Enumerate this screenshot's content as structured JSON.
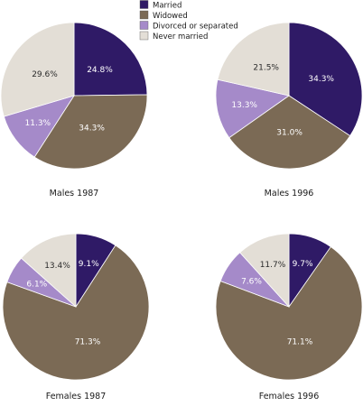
{
  "legend": {
    "items": [
      {
        "label": "Married",
        "color": "#2f1a66"
      },
      {
        "label": "Widowed",
        "color": "#7b6a55"
      },
      {
        "label": "Divorced or separated",
        "color": "#a58ac9"
      },
      {
        "label": "Never married",
        "color": "#e3ded6"
      }
    ]
  },
  "chart_data": [
    {
      "type": "pie",
      "title": "Males 1987",
      "categories": [
        "Married",
        "Widowed",
        "Divorced or separated",
        "Never married"
      ],
      "values": [
        24.8,
        34.3,
        11.3,
        29.6
      ],
      "labels": [
        "24.8%",
        "34.3%",
        "11.3%",
        "29.6%"
      ],
      "start_angle_deg": 0,
      "direction": "clockwise"
    },
    {
      "type": "pie",
      "title": "Males 1996",
      "categories": [
        "Married",
        "Widowed",
        "Divorced or separated",
        "Never married"
      ],
      "values": [
        34.3,
        31.0,
        13.3,
        21.5
      ],
      "labels": [
        "34.3%",
        "31.0%",
        "13.3%",
        "21.5%"
      ],
      "start_angle_deg": 0,
      "direction": "clockwise"
    },
    {
      "type": "pie",
      "title": "Females 1987",
      "categories": [
        "Married",
        "Widowed",
        "Divorced or separated",
        "Never married"
      ],
      "values": [
        9.1,
        71.3,
        6.1,
        13.4
      ],
      "labels": [
        "9.1%",
        "71.3%",
        "6.1%",
        "13.4%"
      ],
      "start_angle_deg": 0,
      "direction": "clockwise"
    },
    {
      "type": "pie",
      "title": "Females 1996",
      "categories": [
        "Married",
        "Widowed",
        "Divorced or separated",
        "Never married"
      ],
      "values": [
        9.7,
        71.1,
        7.6,
        11.7
      ],
      "labels": [
        "9.7%",
        "71.1%",
        "7.6%",
        "11.7%"
      ],
      "start_angle_deg": 0,
      "direction": "clockwise"
    }
  ]
}
